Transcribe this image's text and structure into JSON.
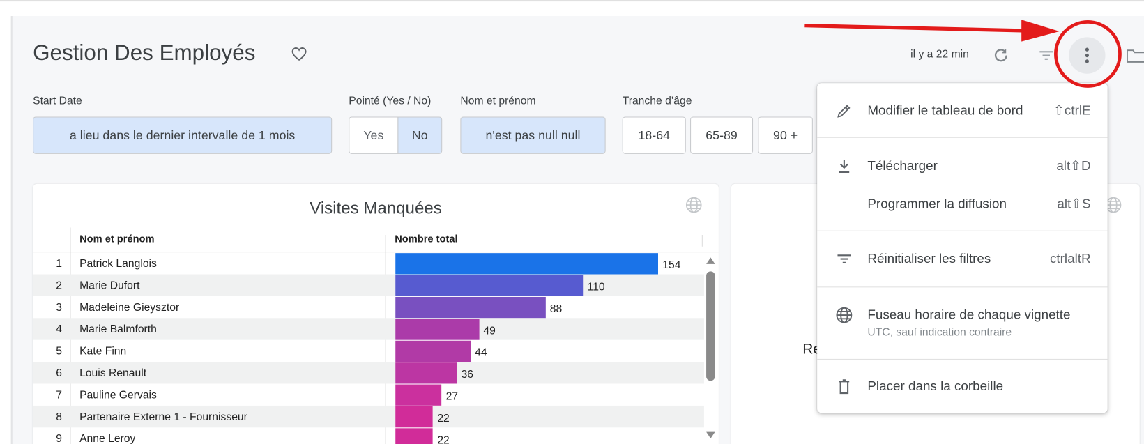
{
  "header": {
    "title": "Gestion Des Employés",
    "updated": "il y a 22 min"
  },
  "filters": {
    "start_date": {
      "label": "Start Date",
      "value": "a lieu dans le dernier intervalle de 1 mois"
    },
    "pointe": {
      "label": "Pointé (Yes / No)",
      "options": [
        "Yes",
        "No"
      ],
      "selected": "No"
    },
    "nom": {
      "label": "Nom et prénom",
      "value": "n'est pas null null"
    },
    "age": {
      "label": "Tranche d’âge",
      "options": [
        "18-64",
        "65-89",
        "90 +"
      ]
    }
  },
  "card1": {
    "title": "Visites Manquées",
    "columns": [
      "Nom et prénom",
      "Nombre total"
    ],
    "rows": [
      {
        "n": "1",
        "name": "Patrick Langlois",
        "value": 154,
        "color": "#1a73e8"
      },
      {
        "n": "2",
        "name": "Marie Dufort",
        "value": 110,
        "color": "#575bd0"
      },
      {
        "n": "3",
        "name": "Madeleine Gieysztor",
        "value": 88,
        "color": "#7950c0"
      },
      {
        "n": "4",
        "name": "Marie Balmforth",
        "value": 49,
        "color": "#ab3ba9"
      },
      {
        "n": "5",
        "name": "Kate Finn",
        "value": 44,
        "color": "#b13aa6"
      },
      {
        "n": "6",
        "name": "Louis Renault",
        "value": 36,
        "color": "#bc36a3"
      },
      {
        "n": "7",
        "name": "Pauline Gervais",
        "value": 27,
        "color": "#cb309e"
      },
      {
        "n": "8",
        "name": "Partenaire Externe 1 - Fournisseur",
        "value": 22,
        "color": "#d12c99"
      },
      {
        "n": "9",
        "name": "Anne Leroy",
        "value": 22,
        "color": "#d12c99"
      }
    ]
  },
  "card2": {
    "partial_text": "Re"
  },
  "menu": {
    "items": [
      {
        "label": "Modifier le tableau de bord",
        "shortcut": "⇧ctrlE",
        "icon": "pencil-icon"
      },
      {
        "label": "Télécharger",
        "shortcut": "alt⇧D",
        "icon": "download-icon"
      },
      {
        "label": "Programmer la diffusion",
        "shortcut": "alt⇧S",
        "icon": ""
      },
      {
        "label": "Réinitialiser les filtres",
        "shortcut": "ctrlaltR",
        "icon": "filter-icon"
      },
      {
        "label": "Fuseau horaire de chaque vignette",
        "sub": "UTC, sauf indication contraire",
        "icon": "globe-icon"
      },
      {
        "label": "Placer dans la corbeille",
        "icon": "trash-icon"
      }
    ]
  },
  "annotation_color": "#e31b1b"
}
